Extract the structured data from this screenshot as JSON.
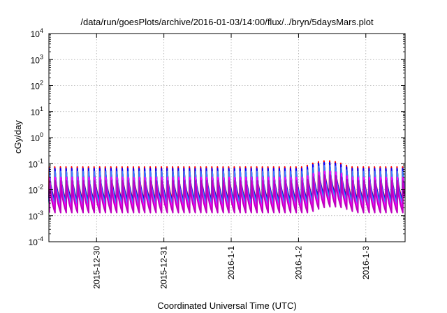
{
  "chart_data": {
    "type": "line",
    "title": "/data/run/goesPlots/archive/2016-01-03/14:00/flux/../bryn/5daysMars.plot",
    "xlabel": "Coordinated Universal Time (UTC)",
    "ylabel": "cGy/day",
    "yscale": "log",
    "ylim": [
      0.0001,
      10000
    ],
    "xlim": [
      "2015-12-29 07:00",
      "2016-01-03 14:00"
    ],
    "x_ticks": [
      {
        "label": "2015-12-30",
        "at": "2015-12-30 00:00"
      },
      {
        "label": "2015-12-31",
        "at": "2015-12-31 00:00"
      },
      {
        "label": "2016-1-1",
        "at": "2016-01-01 00:00"
      },
      {
        "label": "2016-1-2",
        "at": "2016-01-02 00:00"
      },
      {
        "label": "2016-1-3",
        "at": "2016-01-03 00:00"
      }
    ],
    "y_ticks": [
      {
        "base": "10",
        "exp": "-4",
        "value": 0.0001
      },
      {
        "base": "10",
        "exp": "-3",
        "value": 0.001
      },
      {
        "base": "10",
        "exp": "-2",
        "value": 0.01
      },
      {
        "base": "10",
        "exp": "-1",
        "value": 0.1
      },
      {
        "base": "10",
        "exp": "0",
        "value": 1
      },
      {
        "base": "10",
        "exp": "1",
        "value": 10
      },
      {
        "base": "10",
        "exp": "2",
        "value": 100
      },
      {
        "base": "10",
        "exp": "3",
        "value": 1000
      },
      {
        "base": "10",
        "exp": "4",
        "value": 10000
      }
    ],
    "grid": true,
    "sawtooth_period_hours": 2,
    "series": [
      {
        "color": "#ff0000",
        "peak": 0.075,
        "trough": 0.004
      },
      {
        "color": "#0000ff",
        "peak": 0.065,
        "trough": 0.0035
      },
      {
        "color": "#00a0a0",
        "peak": 0.04,
        "trough": 0.003
      },
      {
        "color": "#4080ff",
        "peak": 0.05,
        "trough": 0.0025
      },
      {
        "color": "#ff00ff",
        "peak": 0.03,
        "trough": 0.0018
      },
      {
        "color": "#c000c0",
        "peak": 0.022,
        "trough": 0.0013
      }
    ],
    "event": {
      "start": "2016-01-02 02:00",
      "end": "2016-01-02 18:00",
      "peak_factor": 1.7
    }
  }
}
